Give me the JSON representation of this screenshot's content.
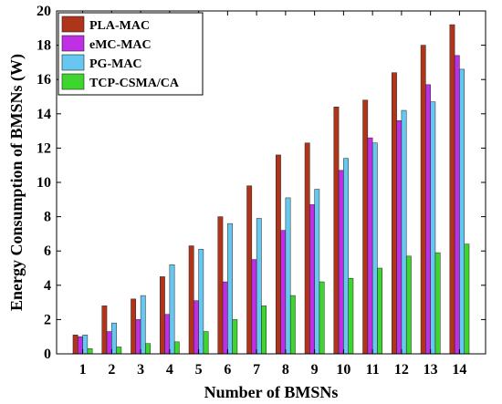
{
  "chart_data": {
    "type": "bar",
    "title": "",
    "xlabel": "Number of BMSNs",
    "ylabel": "Energy Consumption of BMSNs (W)",
    "ylim": [
      0,
      20
    ],
    "yticks": [
      0,
      2,
      4,
      6,
      8,
      10,
      12,
      14,
      16,
      18,
      20
    ],
    "grid": false,
    "legend_position": "top-left",
    "categories": [
      "1",
      "2",
      "3",
      "4",
      "5",
      "6",
      "7",
      "8",
      "9",
      "10",
      "11",
      "12",
      "13",
      "14"
    ],
    "series": [
      {
        "name": "PLA-MAC",
        "color": "#b0341a",
        "values": [
          1.1,
          2.8,
          3.2,
          4.5,
          6.3,
          8.0,
          9.8,
          11.6,
          12.3,
          14.4,
          14.8,
          16.4,
          18.0,
          19.2
        ]
      },
      {
        "name": "eMC-MAC",
        "color": "#bf2fe6",
        "values": [
          1.0,
          1.3,
          2.0,
          2.3,
          3.1,
          4.2,
          5.5,
          7.2,
          8.7,
          10.7,
          12.6,
          13.6,
          15.7,
          17.4
        ]
      },
      {
        "name": "PG-MAC",
        "color": "#66c8f0",
        "values": [
          1.1,
          1.8,
          3.4,
          5.2,
          6.1,
          7.6,
          7.9,
          9.1,
          9.6,
          11.4,
          12.3,
          14.2,
          14.7,
          16.6
        ]
      },
      {
        "name": "TCP-CSMA/CA",
        "color": "#3ed62e",
        "values": [
          0.3,
          0.4,
          0.6,
          0.7,
          1.3,
          2.0,
          2.8,
          3.4,
          4.2,
          4.4,
          5.0,
          5.7,
          5.9,
          6.4
        ]
      }
    ]
  }
}
